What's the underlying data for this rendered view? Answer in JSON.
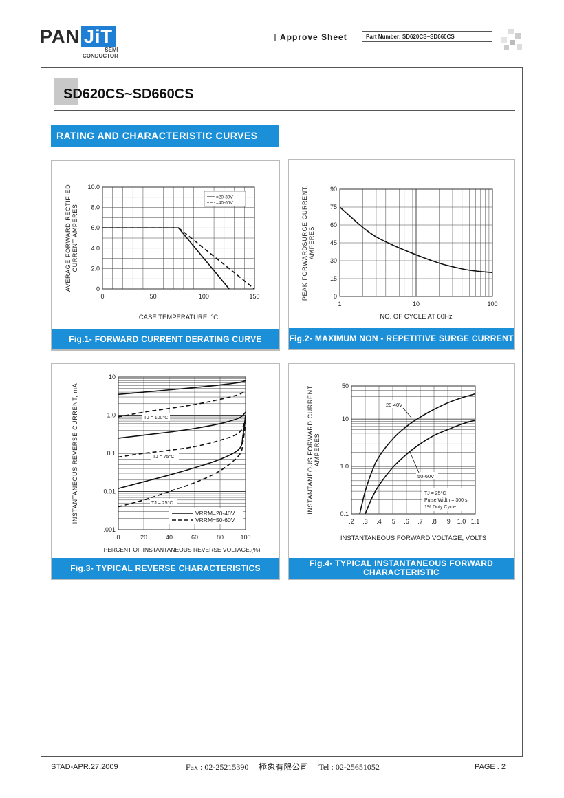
{
  "header": {
    "logo_main": "PAN",
    "logo_accent": "JiT",
    "logo_sub1": "SEMI",
    "logo_sub2": "CONDUCTOR",
    "approve": "Approve Sheet",
    "part_number": "Part Number: SD620CS~SD660CS"
  },
  "title": "SD620CS~SD660CS",
  "section": "RATING AND CHARACTERISTIC CURVES",
  "footer": {
    "left": "STAD-APR.27.2009",
    "middle": "Fax : 02-25215390     極象有限公司     Tel : 02-25651052",
    "right": "PAGE . 2"
  },
  "chart_data": [
    {
      "type": "line",
      "caption": "Fig.1- FORWARD CURRENT DERATING CURVE",
      "xlabel": "CASE TEMPERATURE, °C",
      "ylabel1": "AVERAGE FORWARD RECTIFIED",
      "ylabel2": "CURRENT AMPERES",
      "xlim": [
        0,
        150
      ],
      "ylim": [
        0,
        10
      ],
      "xticks": [
        "0",
        "50",
        "100",
        "150"
      ],
      "yticks": [
        "0",
        "2.0",
        "4.0",
        "6.0",
        "8.0",
        "10.0"
      ],
      "legend": [
        "=20-30V",
        "=40-60V"
      ],
      "series": [
        {
          "name": "=20-30V",
          "style": "solid",
          "x": [
            0,
            75,
            125
          ],
          "y": [
            6.0,
            6.0,
            0
          ]
        },
        {
          "name": "=40-60V",
          "style": "dashed",
          "x": [
            0,
            75,
            150
          ],
          "y": [
            6.0,
            6.0,
            0
          ]
        }
      ]
    },
    {
      "type": "line",
      "caption": "Fig.2- MAXIMUM NON - REPETITIVE SURGE CURRENT",
      "xlabel": "NO. OF CYCLE AT 60Hz",
      "ylabel1": "PEAK FORWARDSURGE CURRENT,",
      "ylabel2": "AMPERES",
      "xscale": "log",
      "xlim": [
        1,
        100
      ],
      "ylim": [
        0,
        90
      ],
      "xticks": [
        "1",
        "10",
        "100"
      ],
      "yticks": [
        "0",
        "15",
        "30",
        "45",
        "60",
        "75",
        "90"
      ],
      "series": [
        {
          "name": "",
          "style": "solid",
          "x": [
            1,
            2,
            3,
            5,
            10,
            20,
            30,
            50,
            100
          ],
          "y": [
            75,
            58,
            50,
            43,
            35,
            28,
            25,
            22,
            20
          ]
        }
      ]
    },
    {
      "type": "line",
      "caption": "Fig.3- TYPICAL REVERSE CHARACTERISTICS",
      "xlabel": "PERCENT OF INSTANTANEOUS REVERSE VOLTAGE,(%)",
      "ylabel1": "INSTANTANEOUS REVERSE CURRENT, mA",
      "yscale": "log",
      "xlim": [
        0,
        100
      ],
      "ylim": [
        0.001,
        10
      ],
      "xticks": [
        "0",
        "20",
        "40",
        "60",
        "80",
        "100"
      ],
      "yticks": [
        ".001",
        "0.01",
        "0.1",
        "1.0",
        "10"
      ],
      "annotations": [
        "TJ = 100°C",
        "TJ = 75°C",
        "TJ = 25°C"
      ],
      "legend": [
        "VRRM=20-40V",
        "VRRM=50-60V"
      ],
      "series": [
        {
          "name": "VRRM=20-40V",
          "style": "solid",
          "x": [
            0,
            20,
            40,
            60,
            80,
            95,
            100
          ],
          "y": [
            3.5,
            4.0,
            4.6,
            5.3,
            6.2,
            7.2,
            8.0
          ]
        },
        {
          "name": "VRRM=50-60V",
          "style": "dashed",
          "x": [
            0,
            20,
            40,
            60,
            80,
            95,
            100
          ],
          "y": [
            0.9,
            1.2,
            1.5,
            1.9,
            2.6,
            3.5,
            4.5
          ]
        },
        {
          "name": "VRRM=20-40V",
          "style": "solid",
          "x": [
            0,
            20,
            40,
            60,
            80,
            95,
            100
          ],
          "y": [
            0.25,
            0.3,
            0.36,
            0.45,
            0.6,
            0.85,
            1.2
          ]
        },
        {
          "name": "VRRM=50-60V",
          "style": "dashed",
          "x": [
            0,
            20,
            40,
            60,
            80,
            95,
            100
          ],
          "y": [
            0.08,
            0.1,
            0.12,
            0.15,
            0.22,
            0.35,
            0.8
          ]
        },
        {
          "name": "VRRM=20-40V",
          "style": "solid",
          "x": [
            0,
            20,
            40,
            60,
            80,
            95,
            98,
            100
          ],
          "y": [
            0.012,
            0.018,
            0.027,
            0.042,
            0.07,
            0.13,
            0.3,
            1.0
          ]
        },
        {
          "name": "VRRM=50-60V",
          "style": "dashed",
          "x": [
            0,
            20,
            40,
            60,
            80,
            95,
            98,
            100
          ],
          "y": [
            0.004,
            0.006,
            0.01,
            0.017,
            0.035,
            0.09,
            0.2,
            0.7
          ]
        }
      ]
    },
    {
      "type": "line",
      "caption": "Fig.4- TYPICAL INSTANTANEOUS FORWARD CHARACTERISTIC",
      "xlabel": "INSTANTANEOUS FORWARD VOLTAGE, VOLTS",
      "ylabel1": "INSTANTANEOUS FORWARD CURRENT",
      "ylabel2": "AMPERES",
      "yscale": "log",
      "xlim": [
        0.2,
        1.1
      ],
      "ylim": [
        0.1,
        50
      ],
      "xticks": [
        ".2",
        ".3",
        ".4",
        ".5",
        ".6",
        ".7",
        ".8",
        ".9",
        "1.0",
        "1.1"
      ],
      "yticks": [
        "0.1",
        "1.0",
        "10",
        "50"
      ],
      "annotations": [
        "20-40V",
        "50-60V",
        "TJ = 25°C",
        "Pulse Width = 300 s",
        "1% Duty Cycle"
      ],
      "series": [
        {
          "name": "20-40V",
          "style": "solid",
          "x": [
            0.26,
            0.3,
            0.35,
            0.4,
            0.5,
            0.6,
            0.7,
            0.8,
            0.9,
            1.0,
            1.1
          ],
          "y": [
            0.1,
            0.3,
            0.8,
            1.6,
            3.8,
            7.0,
            11,
            16,
            22,
            28,
            34
          ]
        },
        {
          "name": "50-60V",
          "style": "solid",
          "x": [
            0.3,
            0.35,
            0.4,
            0.5,
            0.6,
            0.7,
            0.8,
            0.9,
            1.0,
            1.1
          ],
          "y": [
            0.1,
            0.22,
            0.4,
            0.95,
            1.8,
            3.0,
            4.5,
            6.0,
            7.8,
            9.5
          ]
        }
      ]
    }
  ]
}
